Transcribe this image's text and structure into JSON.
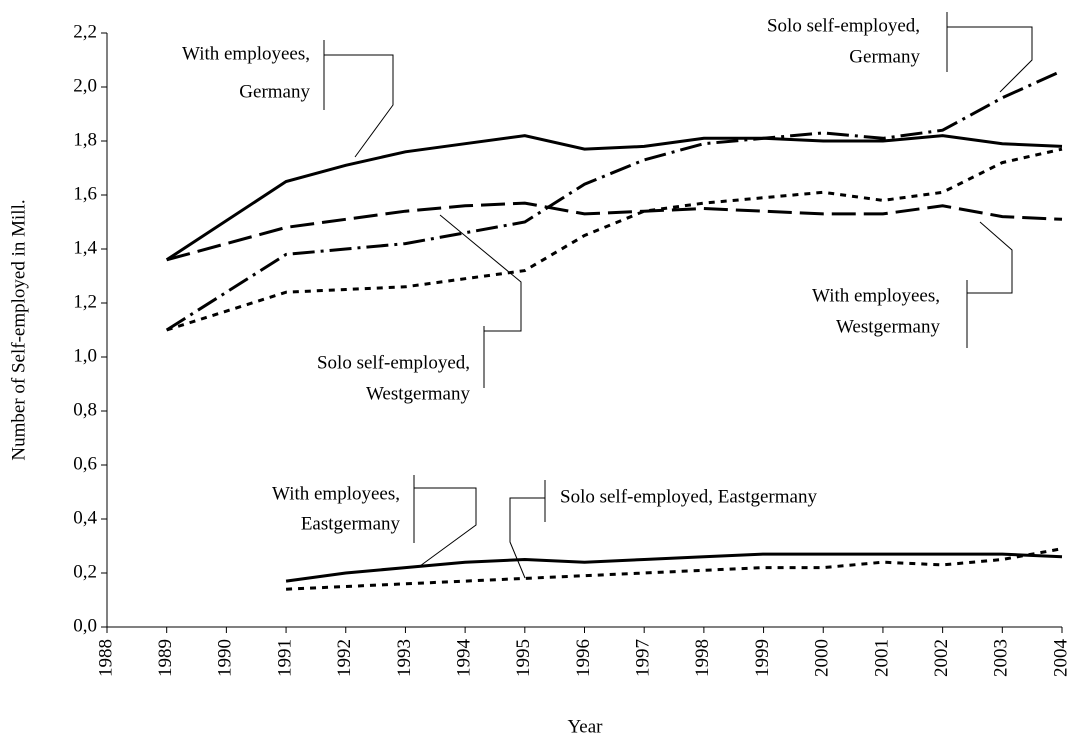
{
  "chart_data": {
    "type": "line",
    "ylabel": "Number of Self-employed in Mill.",
    "xlabel": "Year",
    "x": [
      1989,
      1991,
      1992,
      1993,
      1994,
      1995,
      1996,
      1997,
      1998,
      1999,
      2000,
      2001,
      2002,
      2003,
      2004
    ],
    "xlim": [
      1988,
      2004
    ],
    "xticks": [
      1988,
      1989,
      1990,
      1991,
      1992,
      1993,
      1994,
      1995,
      1996,
      1997,
      1998,
      1999,
      2000,
      2001,
      2002,
      2003,
      2004
    ],
    "ylim": [
      0,
      2.2
    ],
    "yticks": [
      {
        "value": 0,
        "label": "0,0"
      },
      {
        "value": 0.2,
        "label": "0,2"
      },
      {
        "value": 0.4,
        "label": "0,4"
      },
      {
        "value": 0.6,
        "label": "0,6"
      },
      {
        "value": 0.8,
        "label": "0,8"
      },
      {
        "value": 1.0,
        "label": "1,0"
      },
      {
        "value": 1.2,
        "label": "1,2"
      },
      {
        "value": 1.4,
        "label": "1,4"
      },
      {
        "value": 1.6,
        "label": "1,6"
      },
      {
        "value": 1.8,
        "label": "1,8"
      },
      {
        "value": 2.0,
        "label": "2,0"
      },
      {
        "value": 2.2,
        "label": "2,2"
      }
    ],
    "series": [
      {
        "label": [
          "With employees,",
          "Germany"
        ],
        "color": "#000000",
        "style": "solid",
        "values": [
          1.36,
          1.65,
          1.71,
          1.76,
          1.79,
          1.82,
          1.77,
          1.78,
          1.81,
          1.81,
          1.8,
          1.8,
          1.82,
          1.79,
          1.78
        ]
      },
      {
        "label": [
          "Solo self-employed,",
          "Germany"
        ],
        "color": "#000000",
        "style": "dashdot",
        "values": [
          1.1,
          1.38,
          1.4,
          1.42,
          1.46,
          1.5,
          1.64,
          1.73,
          1.79,
          1.81,
          1.83,
          1.81,
          1.84,
          1.96,
          2.06
        ]
      },
      {
        "label": [
          "With employees,",
          "Westgermany"
        ],
        "color": "#000000",
        "style": "longdash",
        "values": [
          1.36,
          1.48,
          1.51,
          1.54,
          1.56,
          1.57,
          1.53,
          1.54,
          1.55,
          1.54,
          1.53,
          1.53,
          1.56,
          1.52,
          1.51
        ]
      },
      {
        "label": [
          "Solo self-employed,",
          "Westgermany"
        ],
        "color": "#000000",
        "style": "dotted",
        "values": [
          1.1,
          1.24,
          1.25,
          1.26,
          1.29,
          1.32,
          1.45,
          1.54,
          1.57,
          1.59,
          1.61,
          1.58,
          1.61,
          1.72,
          1.77
        ]
      },
      {
        "label": [
          "With employees,",
          "Eastgermany"
        ],
        "color": "#000000",
        "style": "solid",
        "values": [
          null,
          0.17,
          0.2,
          0.22,
          0.24,
          0.25,
          0.24,
          0.25,
          0.26,
          0.27,
          0.27,
          0.27,
          0.27,
          0.27,
          0.26
        ]
      },
      {
        "label": [
          "Solo self-employed, Eastgermany"
        ],
        "color": "#000000",
        "style": "dotted",
        "values": [
          null,
          0.14,
          0.15,
          0.16,
          0.17,
          0.18,
          0.19,
          0.2,
          0.21,
          0.22,
          0.22,
          0.24,
          0.23,
          0.25,
          0.29
        ]
      }
    ]
  }
}
